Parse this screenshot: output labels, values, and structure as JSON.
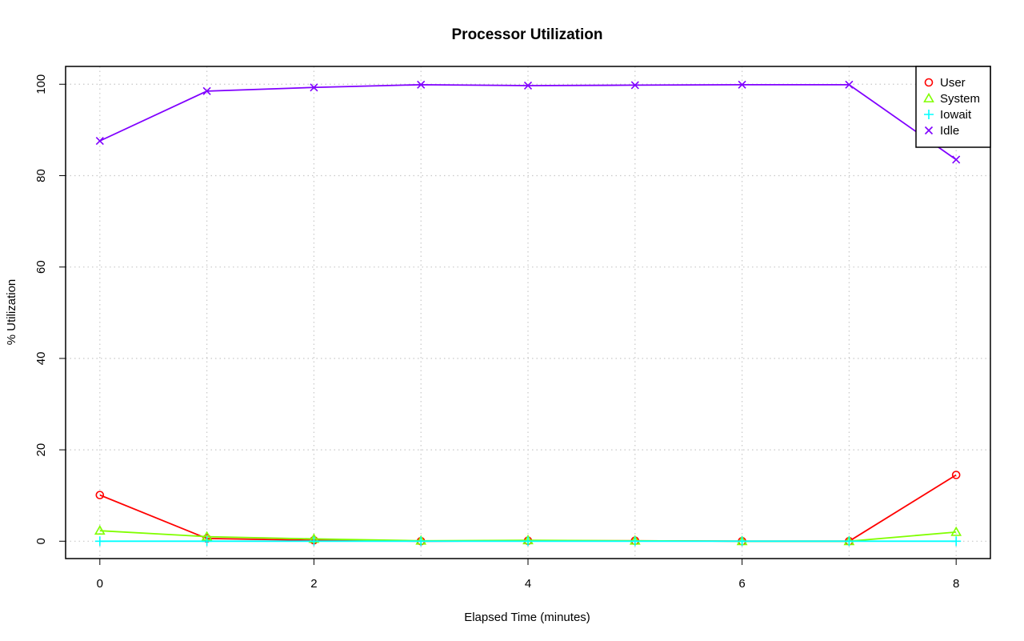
{
  "chart_data": {
    "type": "line",
    "title": "Processor Utilization",
    "xlabel": "Elapsed Time (minutes)",
    "ylabel": "% Utilization",
    "xlim": [
      -0.32,
      8.32
    ],
    "ylim": [
      -3.8,
      103.9
    ],
    "x_ticks": [
      0,
      2,
      4,
      6,
      8
    ],
    "y_ticks": [
      0,
      20,
      40,
      60,
      80,
      100
    ],
    "grid": true,
    "legend_position": "top-right",
    "x": [
      0,
      1,
      2,
      3,
      4,
      5,
      6,
      7,
      8
    ],
    "series": [
      {
        "name": "User",
        "color": "#ff0000",
        "marker": "circle",
        "values": [
          10.1,
          0.6,
          0.2,
          0.0,
          0.1,
          0.1,
          0.0,
          0.0,
          14.5
        ]
      },
      {
        "name": "System",
        "color": "#80ff00",
        "marker": "triangle",
        "values": [
          2.3,
          1.0,
          0.5,
          0.1,
          0.2,
          0.1,
          0.0,
          0.0,
          2.0
        ]
      },
      {
        "name": "Iowait",
        "color": "#00ffff",
        "marker": "plus",
        "values": [
          0.0,
          0.0,
          0.0,
          0.0,
          0.0,
          0.0,
          0.0,
          0.0,
          0.0
        ]
      },
      {
        "name": "Idle",
        "color": "#8000ff",
        "marker": "cross",
        "values": [
          87.6,
          98.5,
          99.3,
          99.9,
          99.7,
          99.8,
          99.9,
          99.9,
          83.5
        ]
      }
    ]
  }
}
